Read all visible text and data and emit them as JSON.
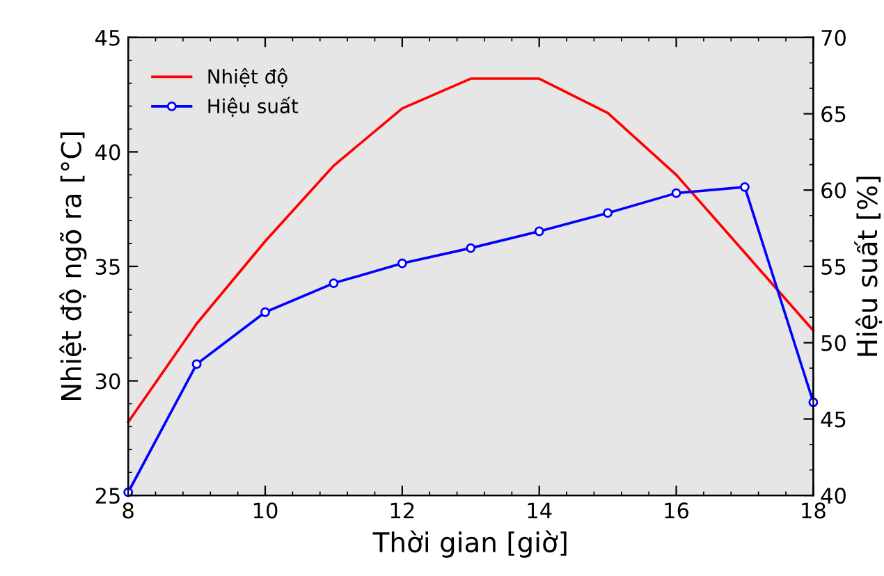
{
  "chart_data": {
    "type": "line",
    "xlabel": "Thời gian [giờ]",
    "ylabel": "Nhiệt độ ngõ ra [°C]",
    "y2label": "Hiệu suất [%]",
    "x": [
      8,
      9,
      10,
      11,
      12,
      13,
      14,
      15,
      16,
      17,
      18
    ],
    "series": [
      {
        "name": "Nhiệt độ",
        "color": "#ff0000",
        "marker": "none",
        "values": [
          28.2,
          32.5,
          36.1,
          39.4,
          41.9,
          43.2,
          43.2,
          41.7,
          39.0,
          35.6,
          32.2
        ]
      },
      {
        "name": "Hiệu suất",
        "color": "#0000ff",
        "marker": "circle",
        "axis": "y2",
        "values": [
          40.2,
          48.6,
          52.0,
          53.9,
          55.2,
          56.2,
          57.3,
          58.5,
          59.8,
          60.2,
          46.1
        ]
      }
    ],
    "xlim": [
      8,
      18
    ],
    "xticks": [
      8,
      10,
      12,
      14,
      16,
      18
    ],
    "ylim": [
      25,
      45
    ],
    "yticks": [
      25,
      30,
      35,
      40,
      45
    ],
    "y2lim": [
      40,
      70
    ],
    "y2ticks": [
      40,
      45,
      50,
      55,
      60,
      65,
      70
    ],
    "legend": "top left",
    "grid": false
  }
}
